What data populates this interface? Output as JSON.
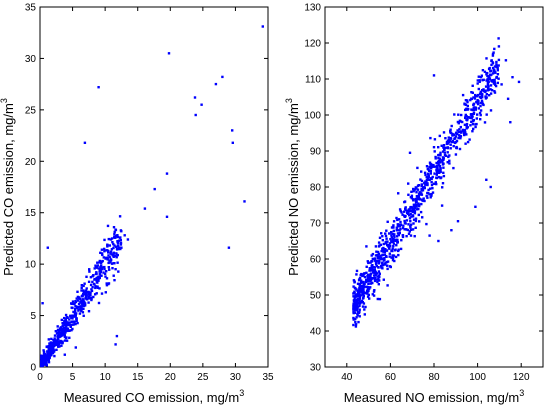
{
  "chart_data": [
    {
      "type": "scatter",
      "xlabel": "Measured CO emission, mg/m",
      "xlabel_sup": "3",
      "ylabel": "Predicted CO emission, mg/m",
      "ylabel_sup": "3",
      "xlim": [
        0,
        35
      ],
      "ylim": [
        0,
        35
      ],
      "xticks": [
        0,
        5,
        10,
        15,
        20,
        25,
        30,
        35
      ],
      "yticks": [
        0,
        5,
        10,
        15,
        20,
        25,
        30,
        35
      ],
      "marker_color": "#0000ff",
      "outliers": [
        {
          "x": 34.2,
          "y": 33.1
        },
        {
          "x": 19.8,
          "y": 30.5
        },
        {
          "x": 28.0,
          "y": 28.2
        },
        {
          "x": 27.0,
          "y": 27.5
        },
        {
          "x": 9.0,
          "y": 27.2
        },
        {
          "x": 23.8,
          "y": 26.2
        },
        {
          "x": 24.8,
          "y": 25.5
        },
        {
          "x": 23.9,
          "y": 24.5
        },
        {
          "x": 29.5,
          "y": 23.0
        },
        {
          "x": 29.6,
          "y": 21.8
        },
        {
          "x": 6.9,
          "y": 21.8
        },
        {
          "x": 19.5,
          "y": 18.8
        },
        {
          "x": 17.6,
          "y": 17.3
        },
        {
          "x": 31.4,
          "y": 16.1
        },
        {
          "x": 16.1,
          "y": 15.4
        },
        {
          "x": 19.5,
          "y": 14.6
        },
        {
          "x": 1.2,
          "y": 11.6
        },
        {
          "x": 29.0,
          "y": 11.6
        },
        {
          "x": 0.4,
          "y": 6.2
        },
        {
          "x": 11.6,
          "y": 2.2
        },
        {
          "x": 11.8,
          "y": 3.0
        },
        {
          "x": 3.8,
          "y": 1.2
        },
        {
          "x": 5.5,
          "y": 1.9
        },
        {
          "x": 13.0,
          "y": 12.8
        },
        {
          "x": 12.5,
          "y": 11.6
        },
        {
          "x": 13.5,
          "y": 12.4
        }
      ],
      "cluster": {
        "x_range": [
          0.2,
          12.5
        ],
        "slope": 1.0,
        "intercept": 0.0,
        "spread": 0.9,
        "count": 650
      }
    },
    {
      "type": "scatter",
      "xlabel": "Measured NO emission, mg/m",
      "xlabel_sup": "3",
      "ylabel": "Predicted NO emission, mg/m",
      "ylabel_sup": "3",
      "xlim": [
        30,
        130
      ],
      "ylim": [
        30,
        130
      ],
      "xticks": [
        40,
        60,
        80,
        100,
        120
      ],
      "yticks": [
        30,
        40,
        50,
        60,
        70,
        80,
        90,
        100,
        110,
        120,
        130
      ],
      "marker_color": "#0000ff",
      "outliers": [
        {
          "x": 107,
          "y": 116.5
        },
        {
          "x": 113,
          "y": 115.2
        },
        {
          "x": 116,
          "y": 110.5
        },
        {
          "x": 119,
          "y": 109.2
        },
        {
          "x": 80,
          "y": 111.0
        },
        {
          "x": 111,
          "y": 108.5
        },
        {
          "x": 114,
          "y": 104.5
        },
        {
          "x": 115,
          "y": 98.0
        },
        {
          "x": 69,
          "y": 89.5
        },
        {
          "x": 106,
          "y": 80.0
        },
        {
          "x": 104,
          "y": 82.0
        },
        {
          "x": 99,
          "y": 74.5
        },
        {
          "x": 49,
          "y": 63.5
        },
        {
          "x": 88,
          "y": 68.0
        },
        {
          "x": 91,
          "y": 70.5
        },
        {
          "x": 82,
          "y": 65.0
        },
        {
          "x": 78,
          "y": 66.5
        }
      ],
      "cluster": {
        "x_range": [
          43,
          110
        ],
        "slope": 1.0,
        "intercept": 4.0,
        "spread": 3.2,
        "count": 1000
      }
    }
  ]
}
